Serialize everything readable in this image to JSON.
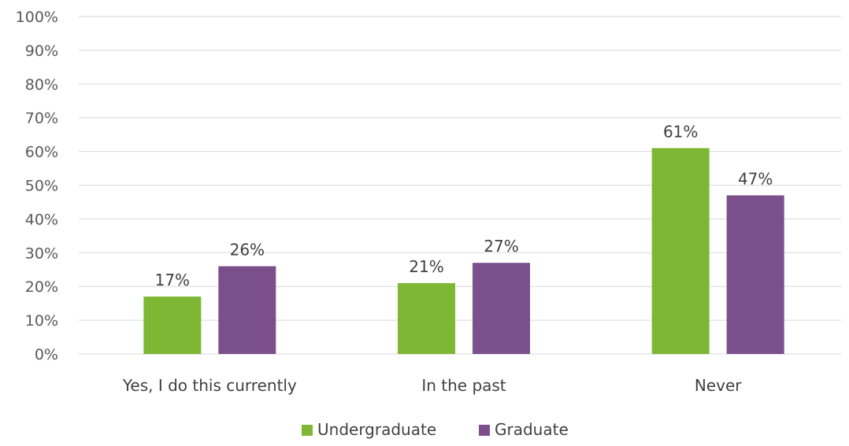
{
  "chart_data": {
    "type": "bar",
    "title": "",
    "xlabel": "",
    "ylabel": "",
    "categories": [
      "Yes, I do this currently",
      "In the past",
      "Never"
    ],
    "series": [
      {
        "name": "Undergraduate",
        "values": [
          17,
          21,
          61
        ],
        "color": "#7db734"
      },
      {
        "name": "Graduate",
        "values": [
          26,
          27,
          47
        ],
        "color": "#7b4f8c"
      }
    ],
    "ylim": [
      0,
      100
    ],
    "yticks": [
      0,
      10,
      20,
      30,
      40,
      50,
      60,
      70,
      80,
      90,
      100
    ],
    "tick_suffix": "%",
    "data_label_suffix": "%",
    "grid": true,
    "legend_position": "bottom"
  }
}
